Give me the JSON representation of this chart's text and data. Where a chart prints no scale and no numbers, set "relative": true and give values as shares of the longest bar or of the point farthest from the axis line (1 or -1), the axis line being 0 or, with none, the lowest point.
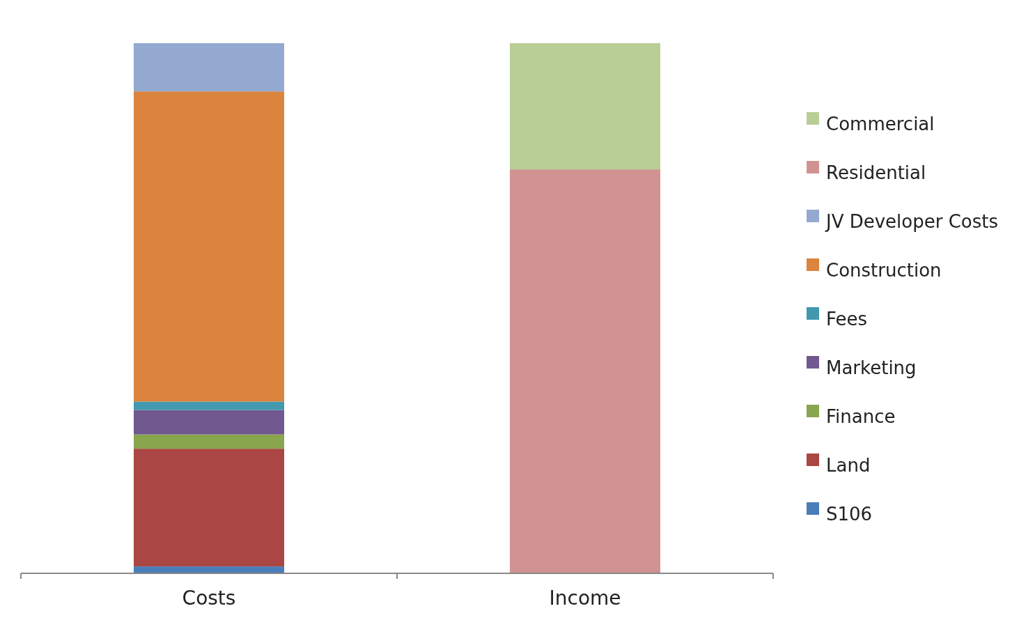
{
  "chart_data": {
    "type": "bar",
    "stacked": true,
    "relative": true,
    "legend": "right",
    "categories": [
      "Costs",
      "Income"
    ],
    "series": [
      {
        "name": "S106",
        "color": "#4a7ebb",
        "values": [
          0.013,
          null
        ]
      },
      {
        "name": "Land",
        "color": "#aa4643",
        "values": [
          0.222,
          null
        ]
      },
      {
        "name": "Finance",
        "color": "#89a54e",
        "values": [
          0.027,
          null
        ]
      },
      {
        "name": "Marketing",
        "color": "#71588f",
        "values": [
          0.046,
          null
        ]
      },
      {
        "name": "Fees",
        "color": "#4198af",
        "values": [
          0.016,
          null
        ]
      },
      {
        "name": "Construction",
        "color": "#db843d",
        "values": [
          0.585,
          null
        ]
      },
      {
        "name": "JV Developer Costs",
        "color": "#93a9cf",
        "values": [
          0.091,
          null
        ]
      },
      {
        "name": "Residential",
        "color": "#d19392",
        "values": [
          null,
          0.762
        ]
      },
      {
        "name": "Commercial",
        "color": "#b9cd96",
        "values": [
          null,
          0.238
        ]
      }
    ]
  }
}
